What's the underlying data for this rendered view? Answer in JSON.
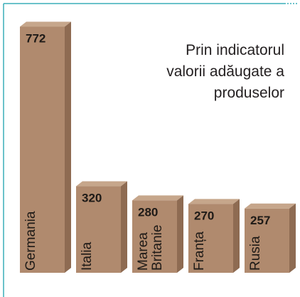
{
  "chart_data": {
    "type": "bar",
    "title": "Prin indicatorul\nvalorii adăugate a\nproduselor",
    "categories": [
      "Germania",
      "Italia",
      "Marea\nBritanie",
      "Franța",
      "Rusia"
    ],
    "values": [
      772,
      320,
      280,
      270,
      257
    ],
    "color": "#b08a6e",
    "ylim": [
      75,
      775
    ]
  }
}
